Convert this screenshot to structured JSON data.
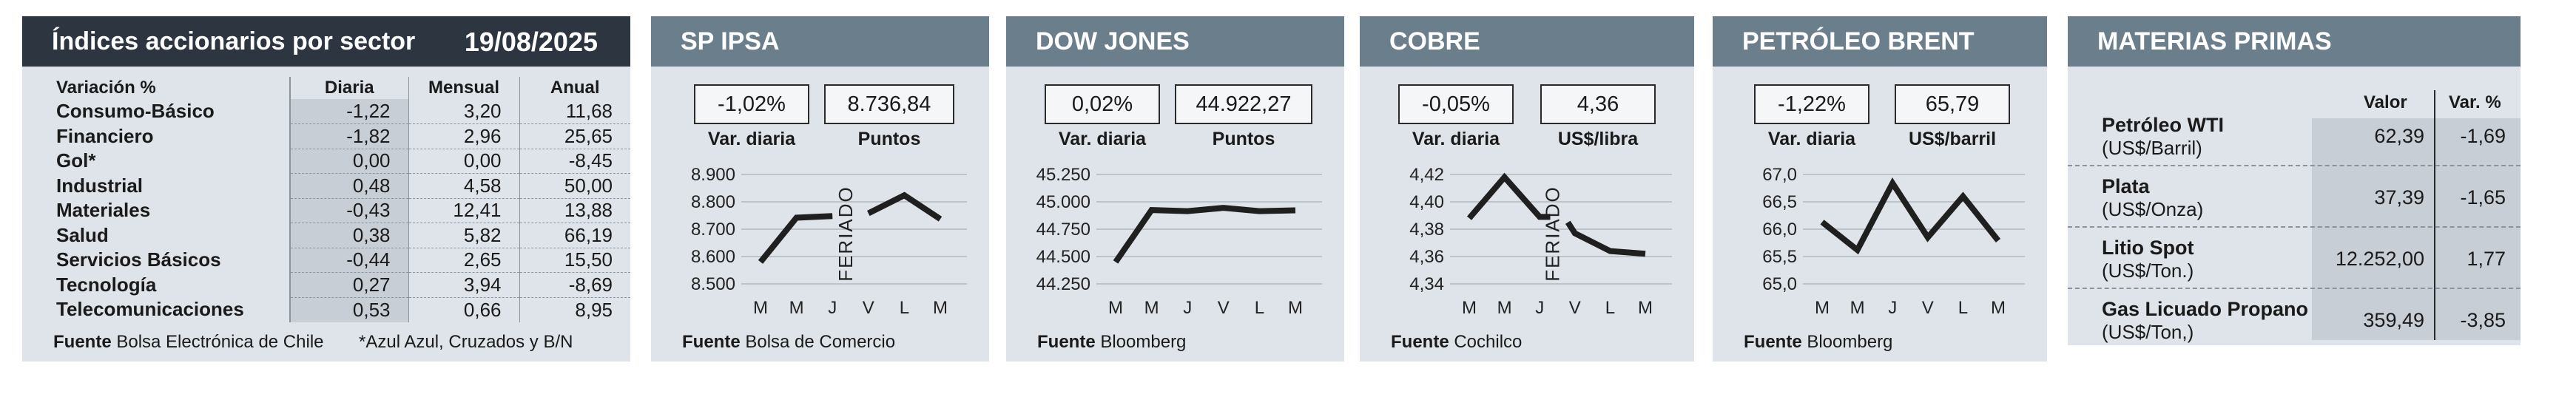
{
  "sectors": {
    "title": "Índices accionarios por sector",
    "date": "19/08/2025",
    "headers": [
      "Variación %",
      "Diaria",
      "Mensual",
      "Anual"
    ],
    "rows": [
      {
        "name": "Consumo-Básico",
        "diaria": "-1,22",
        "mensual": "3,20",
        "anual": "11,68"
      },
      {
        "name": "Financiero",
        "diaria": "-1,82",
        "mensual": "2,96",
        "anual": "25,65"
      },
      {
        "name": "Gol*",
        "diaria": "0,00",
        "mensual": "0,00",
        "anual": "-8,45"
      },
      {
        "name": "Industrial",
        "diaria": "0,48",
        "mensual": "4,58",
        "anual": "50,00"
      },
      {
        "name": "Materiales",
        "diaria": "-0,43",
        "mensual": "12,41",
        "anual": "13,88"
      },
      {
        "name": "Salud",
        "diaria": "0,38",
        "mensual": "5,82",
        "anual": "66,19"
      },
      {
        "name": "Servicios Básicos",
        "diaria": "-0,44",
        "mensual": "2,65",
        "anual": "15,50"
      },
      {
        "name": "Tecnología",
        "diaria": "0,27",
        "mensual": "3,94",
        "anual": "-8,69"
      },
      {
        "name": "Telecomunicaciones",
        "diaria": "0,53",
        "mensual": "0,66",
        "anual": "8,95"
      }
    ],
    "source_label": "Fuente",
    "source": "Bolsa Electrónica de Chile",
    "note": "*Azul Azul, Cruzados y B/N"
  },
  "chart_data": [
    {
      "type": "line",
      "title": "SP IPSA",
      "stat1": {
        "value": "-1,02%",
        "label": "Var. diaria"
      },
      "stat2": {
        "value": "8.736,84",
        "label": "Puntos"
      },
      "categories": [
        "M",
        "M",
        "J",
        "V",
        "L",
        "M"
      ],
      "y_ticks": [
        "8.900",
        "8.800",
        "8.700",
        "8.600",
        "8.500"
      ],
      "ylim": [
        8500,
        8900
      ],
      "segments": [
        [
          [
            0,
            8580
          ],
          [
            1,
            8742
          ],
          [
            2,
            8748
          ]
        ],
        [
          [
            3,
            8758
          ],
          [
            4,
            8824
          ],
          [
            5,
            8737
          ]
        ]
      ],
      "holiday_label": "FERIADO",
      "holiday_index": 2.55,
      "source_label": "Fuente",
      "source": "Bolsa de Comercio"
    },
    {
      "type": "line",
      "title": "DOW JONES",
      "stat1": {
        "value": "0,02%",
        "label": "Var. diaria"
      },
      "stat2": {
        "value": "44.922,27",
        "label": "Puntos"
      },
      "categories": [
        "M",
        "M",
        "J",
        "V",
        "L",
        "M"
      ],
      "y_ticks": [
        "45.250",
        "45.000",
        "44.750",
        "44.500",
        "44.250"
      ],
      "ylim": [
        44250,
        45250
      ],
      "segments": [
        [
          [
            0,
            44450
          ],
          [
            1,
            44925
          ],
          [
            2,
            44915
          ],
          [
            3,
            44945
          ],
          [
            4,
            44915
          ],
          [
            5,
            44922
          ]
        ]
      ],
      "source_label": "Fuente",
      "source": "Bloomberg"
    },
    {
      "type": "line",
      "title": "COBRE",
      "stat1": {
        "value": "-0,05%",
        "label": "Var. diaria"
      },
      "stat2": {
        "value": "4,36",
        "label": "US$/libra"
      },
      "categories": [
        "M",
        "M",
        "J",
        "V",
        "L",
        "M"
      ],
      "y_ticks": [
        "4,42",
        "4,40",
        "4,38",
        "4,36",
        "4,34"
      ],
      "ylim": [
        4.34,
        4.42
      ],
      "segments": [
        [
          [
            0,
            4.388
          ],
          [
            1,
            4.418
          ],
          [
            2,
            4.389
          ],
          [
            2.3,
            4.389
          ]
        ],
        [
          [
            2.8,
            4.385
          ],
          [
            3,
            4.377
          ],
          [
            4,
            4.364
          ],
          [
            5,
            4.362
          ]
        ]
      ],
      "holiday_label": "FERIADO",
      "holiday_index": 2.55,
      "source_label": "Fuente",
      "source": "Cochilco"
    },
    {
      "type": "line",
      "title": "PETRÓLEO BRENT",
      "stat1": {
        "value": "-1,22%",
        "label": "Var. diaria"
      },
      "stat2": {
        "value": "65,79",
        "label": "US$/barril"
      },
      "categories": [
        "M",
        "M",
        "J",
        "V",
        "L",
        "M"
      ],
      "y_ticks": [
        "67,0",
        "66,5",
        "66,0",
        "65,5",
        "65,0"
      ],
      "ylim": [
        65.0,
        67.0
      ],
      "segments": [
        [
          [
            0,
            66.13
          ],
          [
            1,
            65.62
          ],
          [
            2,
            66.84
          ],
          [
            3,
            65.85
          ],
          [
            4,
            66.6
          ],
          [
            5,
            65.79
          ]
        ]
      ],
      "source_label": "Fuente",
      "source": "Bloomberg"
    }
  ],
  "commodities": {
    "title": "MATERIAS PRIMAS",
    "col_valor": "Valor",
    "col_var": "Var. %",
    "rows": [
      {
        "name": "Petróleo WTI",
        "unit": "(US$/Barril)",
        "valor": "62,39",
        "var": "-1,69"
      },
      {
        "name": "Plata",
        "unit": "(US$/Onza)",
        "valor": "37,39",
        "var": "-1,65"
      },
      {
        "name": "Litio Spot",
        "unit": "(US$/Ton.)",
        "valor": "12.252,00",
        "var": "1,77"
      },
      {
        "name": "Gas Licuado Propano",
        "unit": "(US$/Ton,)",
        "valor": "359,49",
        "var": "-3,85"
      }
    ]
  },
  "colors": {
    "header_dark": "#2d3640",
    "header_mid": "#6a7e8c",
    "panel_bg": "#dfe4ea",
    "shade": "#c8ced5",
    "line": "#1f1f1f"
  }
}
